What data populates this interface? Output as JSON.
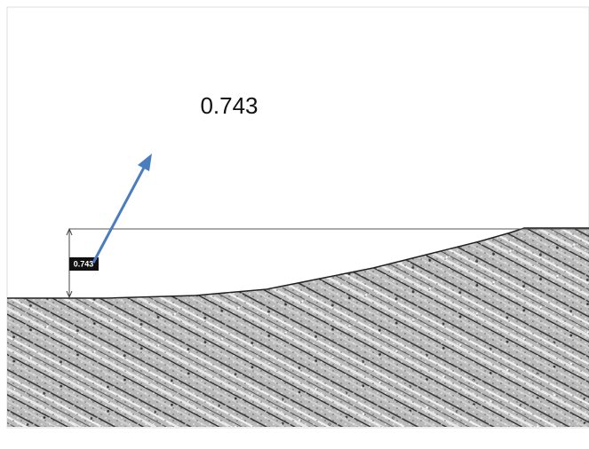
{
  "callout": {
    "label": "0.743"
  },
  "measurement": {
    "label": "0.743"
  }
}
